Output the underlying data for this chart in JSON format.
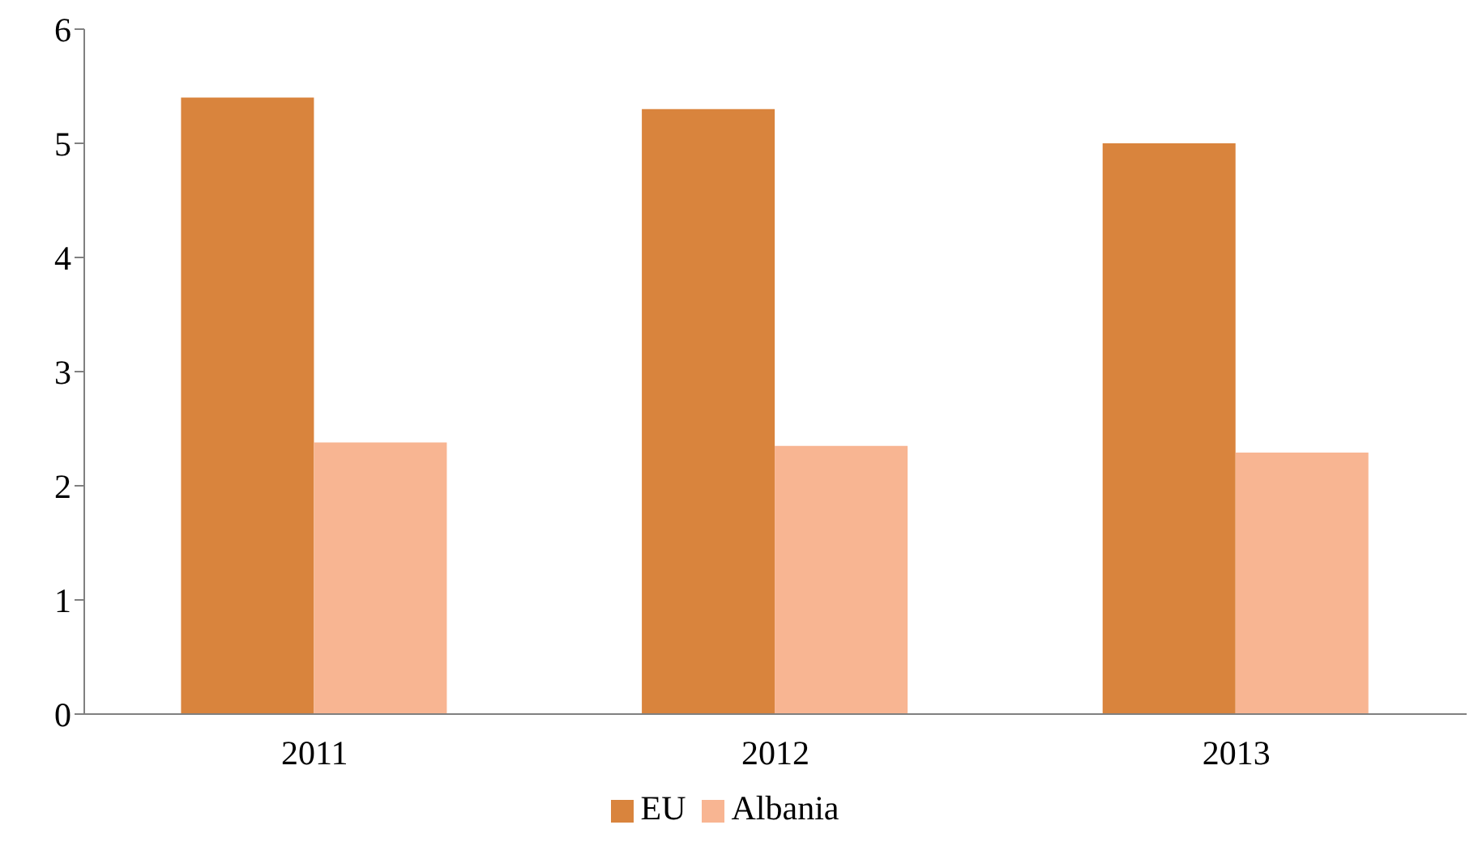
{
  "chart_data": {
    "type": "bar",
    "categories": [
      "2011",
      "2012",
      "2013"
    ],
    "series": [
      {
        "name": "EU",
        "color": "#d9843d",
        "values": [
          5.4,
          5.3,
          5.0
        ]
      },
      {
        "name": "Albania",
        "color": "#f8b592",
        "values": [
          2.38,
          2.35,
          2.29
        ]
      }
    ],
    "ylim": [
      0,
      6
    ],
    "yticks": [
      0,
      1,
      2,
      3,
      4,
      5,
      6
    ],
    "grid": false,
    "legend": "bottom"
  }
}
